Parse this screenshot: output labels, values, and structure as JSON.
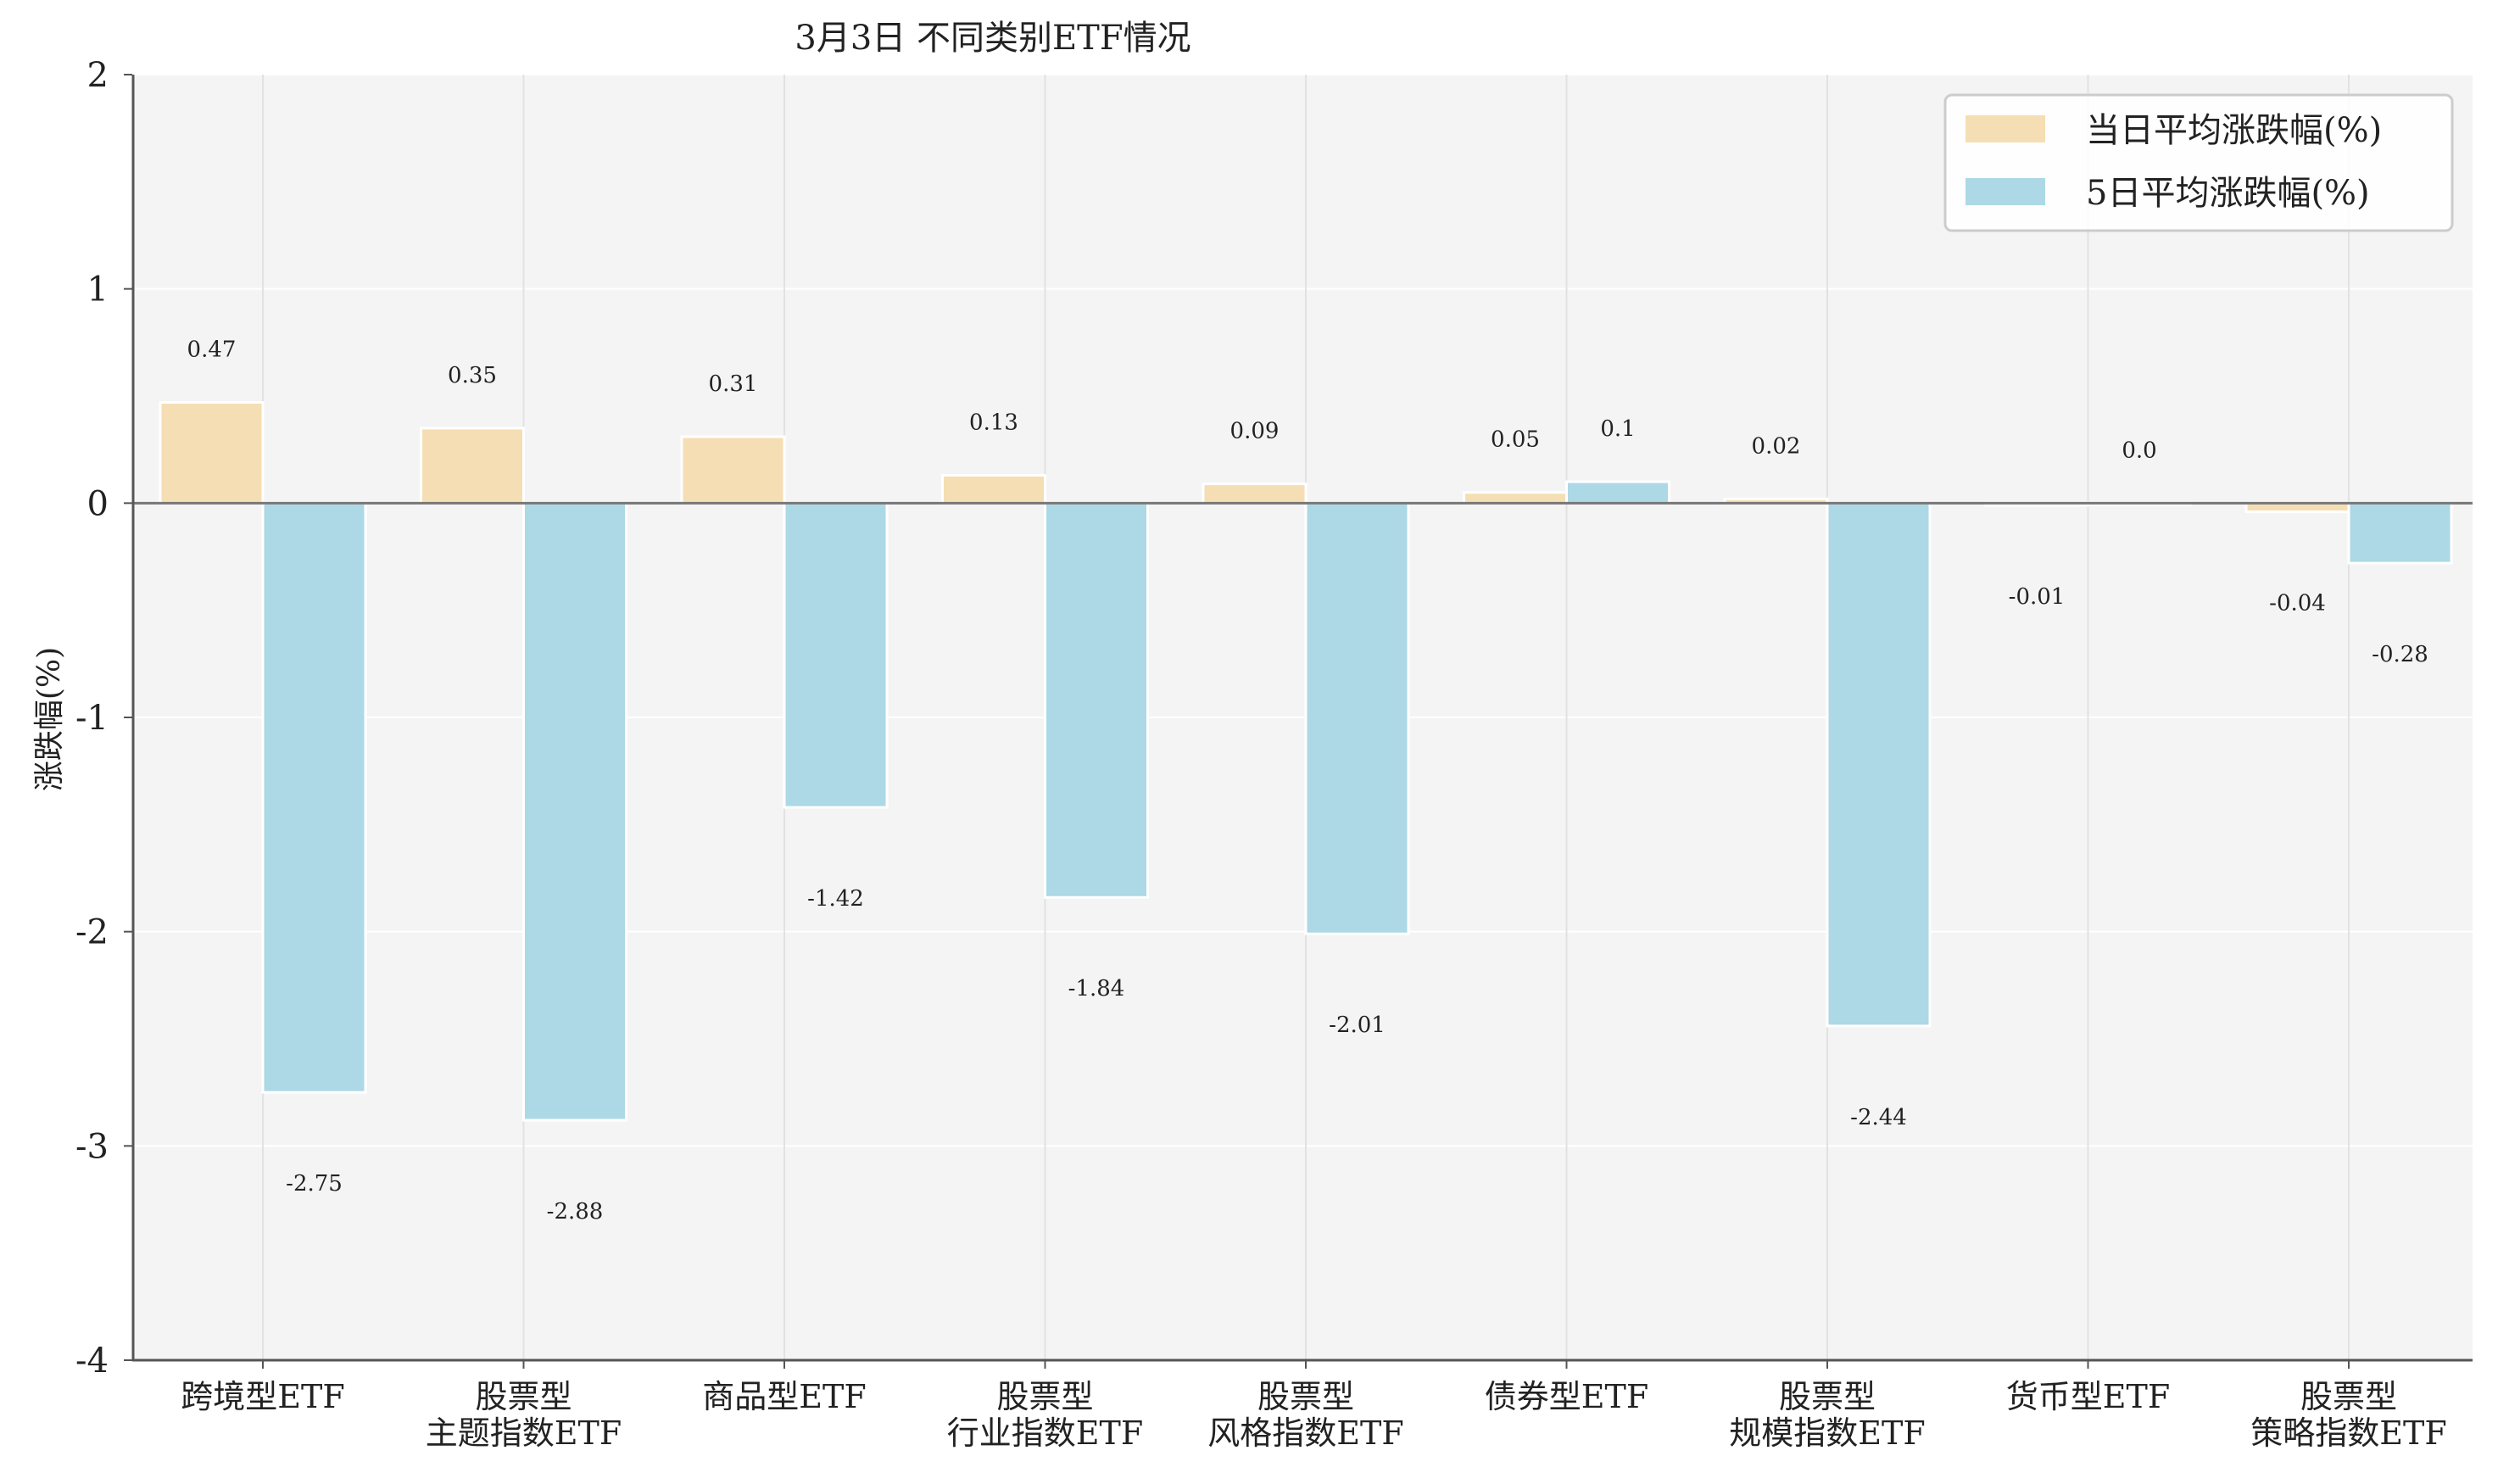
{
  "chart_data": {
    "type": "bar",
    "title": "3月3日 不同类别ETF情况",
    "ylabel": "涨跌幅(%)",
    "xlabel": "",
    "ylim": [
      -4,
      2
    ],
    "yticks": [
      "2",
      "1",
      "0",
      "-1",
      "-2",
      "-3",
      "-4"
    ],
    "ytick_values": [
      2,
      1,
      0,
      -1,
      -2,
      -3,
      -4
    ],
    "grid": true,
    "legend_position": "top-right",
    "categories": [
      [
        "跨境型ETF"
      ],
      [
        "股票型",
        "主题指数ETF"
      ],
      [
        "商品型ETF"
      ],
      [
        "股票型",
        "行业指数ETF"
      ],
      [
        "股票型",
        "风格指数ETF"
      ],
      [
        "债券型ETF"
      ],
      [
        "股票型",
        "规模指数ETF"
      ],
      [
        "货币型ETF"
      ],
      [
        "股票型",
        "策略指数ETF"
      ]
    ],
    "series": [
      {
        "name": "当日平均涨跌幅(%)",
        "color": "#f5deb3",
        "values": [
          0.47,
          0.35,
          0.31,
          0.13,
          0.09,
          0.05,
          0.02,
          -0.01,
          -0.04
        ],
        "labels": [
          "0.47",
          "0.35",
          "0.31",
          "0.13",
          "0.09",
          "0.05",
          "0.02",
          "-0.01",
          "-0.04"
        ]
      },
      {
        "name": "5日平均涨跌幅(%)",
        "color": "#add8e6",
        "values": [
          -2.75,
          -2.88,
          -1.42,
          -1.84,
          -2.01,
          0.1,
          -2.44,
          0.0,
          -0.28
        ],
        "labels": [
          "-2.75",
          "-2.88",
          "-1.42",
          "-1.84",
          "-2.01",
          "0.1",
          "-2.44",
          "0.0",
          "-0.28"
        ]
      }
    ]
  },
  "colors": {
    "plot_background": "#f4f4f4",
    "grid": "#ffffff",
    "axis": "#555555",
    "zero_line": "#777777"
  }
}
